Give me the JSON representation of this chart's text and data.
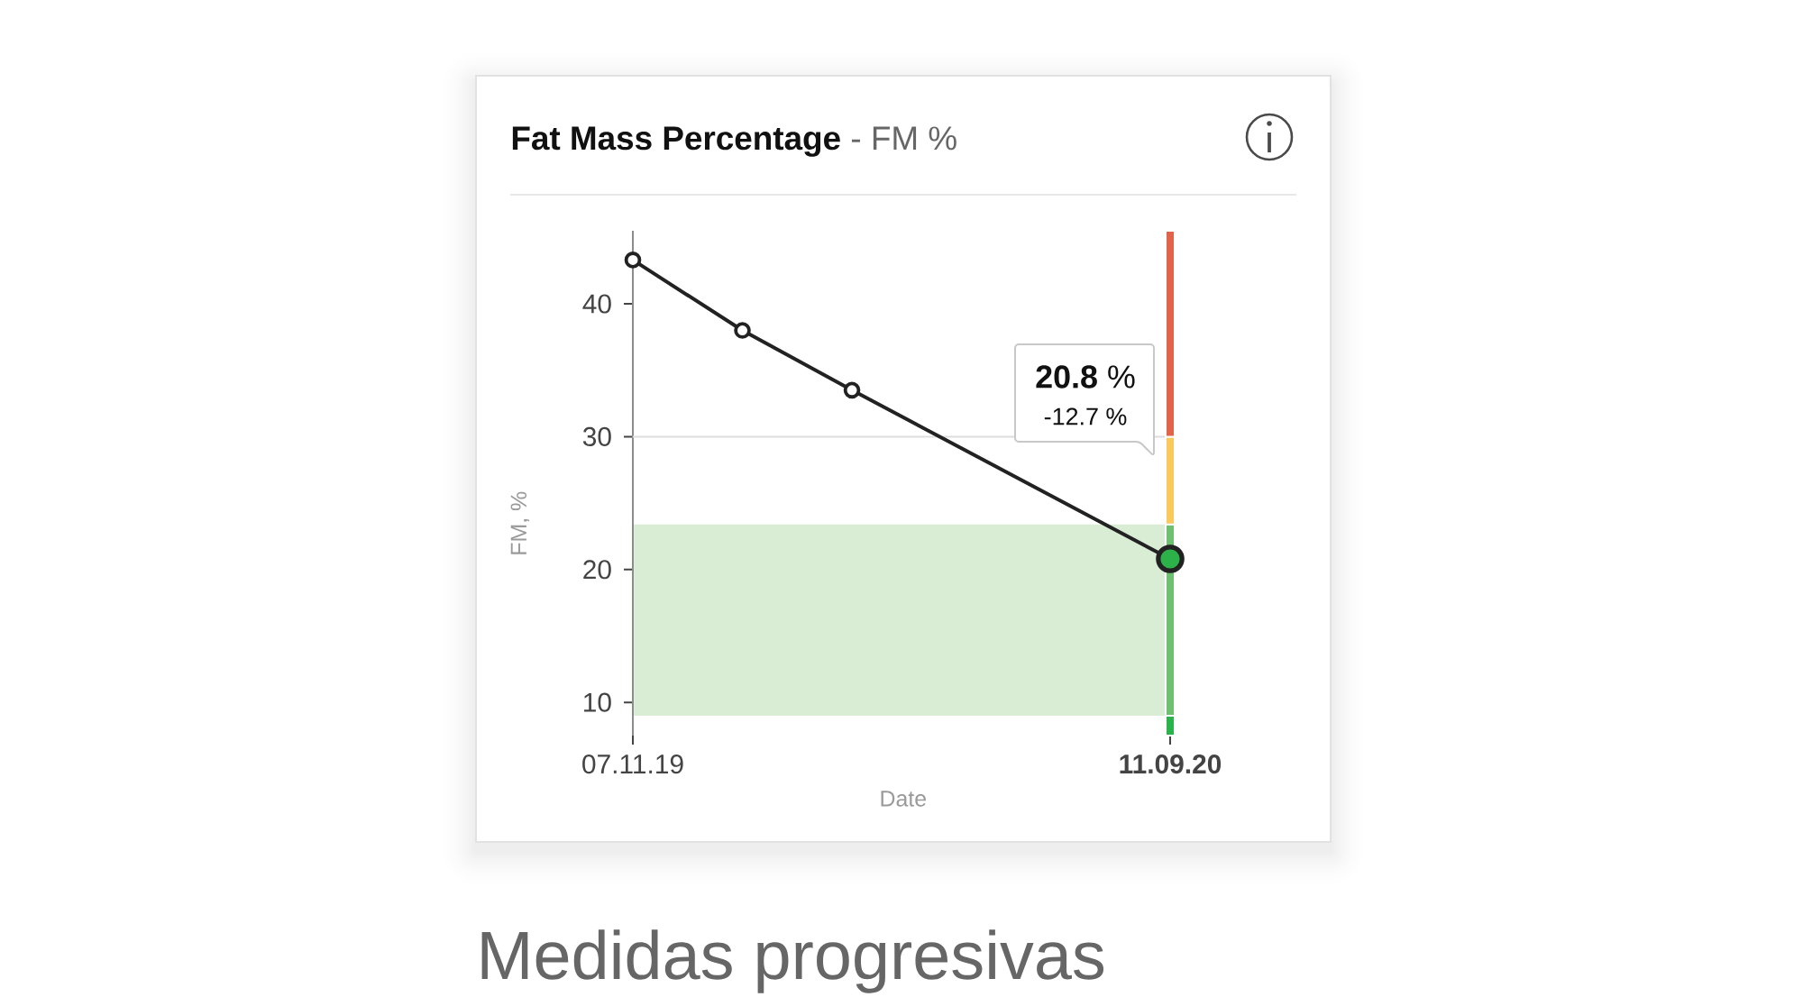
{
  "chart_data": {
    "type": "line",
    "title": "Fat Mass Percentage",
    "subtitle": "- FM %",
    "xlabel": "Date",
    "ylabel": "FM, %",
    "x": [
      "2019-11-07",
      "2020-01-09",
      "2020-03-12",
      "2020-09-11"
    ],
    "series": [
      {
        "color": "#222222",
        "colors": [
          "#ffffff",
          "#ffffff",
          "#ffffff",
          "#2db24a"
        ],
        "values": [
          43.3,
          38.0,
          33.5,
          20.8
        ]
      },
      {
        "type": "bar",
        "x": [
          "2020-09-11"
        ],
        "base": [
          7.5
        ],
        "values": [
          1.5
        ],
        "color": "#2ab34a"
      },
      {
        "type": "bar",
        "x": [
          "2020-09-11"
        ],
        "base": [
          9.0
        ],
        "values": [
          14.4
        ],
        "color": "#6cc070"
      },
      {
        "type": "bar",
        "x": [
          "2020-09-11"
        ],
        "base": [
          23.4
        ],
        "values": [
          6.6
        ],
        "color": "#f9c95b"
      },
      {
        "type": "bar",
        "x": [
          "2020-09-11"
        ],
        "base": [
          30
        ],
        "values": [
          15.5
        ],
        "color": "#e0634a"
      }
    ],
    "xlim": [
      "2019-11-07",
      "2020-09-11"
    ],
    "ylim": [
      7.5,
      45.5
    ],
    "xticks": [
      {
        "value": "2019-11-07",
        "label": "07.11.19"
      },
      {
        "value": "2020-09-11",
        "label": "11.09.20"
      }
    ],
    "yticks": [
      10,
      20,
      30,
      40
    ],
    "marker": "circle",
    "line_style": "solid",
    "ref_lines": [
      {
        "axis": "y",
        "value": 30,
        "color": "#dddddd"
      }
    ],
    "bands": [
      {
        "axis": "y",
        "from": 9.0,
        "to": 23.4,
        "color": "#d9ecd4"
      }
    ],
    "annotations": [
      "**20.8** %",
      "-12.7 %",
      "Medidas progresivas"
    ]
  }
}
